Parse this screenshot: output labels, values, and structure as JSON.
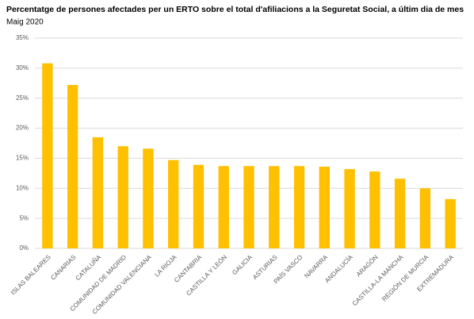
{
  "chart_data": {
    "type": "bar",
    "title": "Percentatge de persones afectades per un ERTO sobre el total d'afiliacions a la Seguretat Social, a últim dia de mes",
    "subtitle": "Maig 2020",
    "categories": [
      "ISLAS BALEARES",
      "CANARIAS",
      "CATALUÑA",
      "COMUNIDAD DE MADRID",
      "COMUNIDAD VALENCIANA",
      "LA RIOJA",
      "CANTABRIA",
      "CASTILLA Y LEÓN",
      "GALICIA",
      "ASTURIAS",
      "PAÍS VASCO",
      "NAVARRA",
      "ANDALUCÍA",
      "ARAGÓN",
      "CASTILLA-LA MANCHA",
      "REGIÓN DE MURCIA",
      "EXTREMADURA"
    ],
    "values": [
      30.8,
      27.2,
      18.5,
      17.0,
      16.6,
      14.7,
      13.9,
      13.7,
      13.7,
      13.7,
      13.7,
      13.6,
      13.2,
      12.8,
      11.6,
      10.0,
      8.2
    ],
    "color": "#ffc000",
    "ylim": [
      0,
      35
    ],
    "yticks": [
      {
        "value": 0,
        "label": "0%"
      },
      {
        "value": 5,
        "label": "5%"
      },
      {
        "value": 10,
        "label": "10%"
      },
      {
        "value": 15,
        "label": "15%"
      },
      {
        "value": 20,
        "label": "20%"
      },
      {
        "value": 25,
        "label": "25%"
      },
      {
        "value": 30,
        "label": "30%"
      },
      {
        "value": 35,
        "label": "35%"
      }
    ],
    "grid": true
  }
}
